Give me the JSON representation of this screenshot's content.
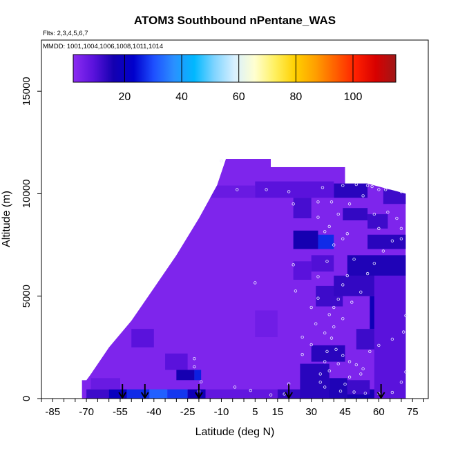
{
  "chart_data": {
    "type": "heatmap",
    "title": "ATOM3 Southbound nPentane_WAS",
    "flights_label": "Flts: 2,3,4,5,6,7",
    "dates_label": "MMDD: 1001,1004,1006,1008,1011,1014",
    "xlabel": "Latitude (deg N)",
    "ylabel": "Altitude (m)",
    "xlim": [
      -90,
      82
    ],
    "ylim": [
      0,
      17500
    ],
    "x_tick_labels": [
      "-85",
      "-70",
      "-55",
      "-40",
      "-25",
      "-10",
      "5",
      "15",
      "30",
      "45",
      "60",
      "75"
    ],
    "x_tick_values": [
      -85,
      -70,
      -55,
      -40,
      -25,
      -10,
      5,
      15,
      30,
      45,
      60,
      75
    ],
    "x_minor_step": 5,
    "y_tick_labels": [
      "0",
      "5000",
      "10000",
      "15000"
    ],
    "y_tick_values": [
      0,
      5000,
      10000,
      15000
    ],
    "colorbar": {
      "min": 2,
      "max": 115,
      "tick_labels": [
        "20",
        "40",
        "60",
        "80",
        "100"
      ],
      "tick_values": [
        20,
        40,
        60,
        80,
        100
      ],
      "colors": [
        "#8c2cf2",
        "#5a12dc",
        "#1400b0",
        "#0000cc",
        "#1e50ff",
        "#2a90ff",
        "#00b8ff",
        "#7fd4ff",
        "#d8f0ff",
        "#ffffd0",
        "#fff060",
        "#ffd000",
        "#ffa000",
        "#ff6000",
        "#ff2000",
        "#d80000",
        "#a01818"
      ]
    },
    "envelope": [
      [
        -72,
        0
      ],
      [
        -72,
        900
      ],
      [
        -70,
        900
      ],
      [
        -68,
        1200
      ],
      [
        -60,
        2500
      ],
      [
        -50,
        3800
      ],
      [
        -40,
        5400
      ],
      [
        -30,
        7000
      ],
      [
        -20,
        8800
      ],
      [
        -12,
        10400
      ],
      [
        -8,
        11700
      ],
      [
        12,
        11700
      ],
      [
        12,
        11300
      ],
      [
        45,
        11300
      ],
      [
        45,
        10500
      ],
      [
        55,
        10500
      ],
      [
        72,
        10000
      ],
      [
        72,
        0
      ]
    ],
    "background_value": 4,
    "patches": [
      {
        "x": [
          -70,
          -60
        ],
        "y": [
          0,
          450
        ],
        "value": 12
      },
      {
        "x": [
          -60,
          -52
        ],
        "y": [
          0,
          450
        ],
        "value": 20
      },
      {
        "x": [
          -52,
          -42
        ],
        "y": [
          0,
          450
        ],
        "value": 27
      },
      {
        "x": [
          -42,
          -34
        ],
        "y": [
          0,
          450
        ],
        "value": 32
      },
      {
        "x": [
          -34,
          -25
        ],
        "y": [
          0,
          450
        ],
        "value": 28
      },
      {
        "x": [
          -25,
          -17
        ],
        "y": [
          0,
          450
        ],
        "value": 18
      },
      {
        "x": [
          -17,
          15
        ],
        "y": [
          0,
          450
        ],
        "value": 8
      },
      {
        "x": [
          15,
          25
        ],
        "y": [
          0,
          450
        ],
        "value": 13
      },
      {
        "x": [
          25,
          60
        ],
        "y": [
          0,
          450
        ],
        "value": 16
      },
      {
        "x": [
          60,
          64
        ],
        "y": [
          0,
          450
        ],
        "value": 19
      },
      {
        "x": [
          64,
          72
        ],
        "y": [
          0,
          450
        ],
        "value": 34
      },
      {
        "x": [
          -68,
          -55
        ],
        "y": [
          450,
          1000
        ],
        "value": 7
      },
      {
        "x": [
          -30,
          -22
        ],
        "y": [
          900,
          1400
        ],
        "value": 16
      },
      {
        "x": [
          -22,
          -19
        ],
        "y": [
          900,
          1400
        ],
        "value": 26
      },
      {
        "x": [
          -35,
          -25
        ],
        "y": [
          1400,
          2200
        ],
        "value": 9
      },
      {
        "x": [
          -50,
          -40
        ],
        "y": [
          2500,
          3400
        ],
        "value": 9
      },
      {
        "x": [
          5,
          15
        ],
        "y": [
          3000,
          4300
        ],
        "value": 6
      },
      {
        "x": [
          25,
          38
        ],
        "y": [
          0,
          1700
        ],
        "value": 14
      },
      {
        "x": [
          38,
          46
        ],
        "y": [
          0,
          1000
        ],
        "value": 15
      },
      {
        "x": [
          46,
          56
        ],
        "y": [
          200,
          900
        ],
        "value": 12
      },
      {
        "x": [
          30,
          45
        ],
        "y": [
          1800,
          2600
        ],
        "value": 14
      },
      {
        "x": [
          50,
          70
        ],
        "y": [
          2400,
          3400
        ],
        "value": 12
      },
      {
        "x": [
          56,
          64
        ],
        "y": [
          3400,
          5000
        ],
        "value": 18
      },
      {
        "x": [
          32,
          44
        ],
        "y": [
          4500,
          5500
        ],
        "value": 12
      },
      {
        "x": [
          40,
          70
        ],
        "y": [
          5000,
          6000
        ],
        "value": 13
      },
      {
        "x": [
          46,
          72
        ],
        "y": [
          6000,
          7000
        ],
        "value": 15
      },
      {
        "x": [
          30,
          40
        ],
        "y": [
          6200,
          7000
        ],
        "value": 10
      },
      {
        "x": [
          22,
          33
        ],
        "y": [
          7300,
          8200
        ],
        "value": 16
      },
      {
        "x": [
          33,
          40
        ],
        "y": [
          7300,
          8000
        ],
        "value": 27
      },
      {
        "x": [
          22,
          30
        ],
        "y": [
          5800,
          6700
        ],
        "value": 9
      },
      {
        "x": [
          55,
          72
        ],
        "y": [
          7300,
          8000
        ],
        "value": 14
      },
      {
        "x": [
          22,
          30
        ],
        "y": [
          8800,
          9800
        ],
        "value": 11
      },
      {
        "x": [
          44,
          55
        ],
        "y": [
          8700,
          9300
        ],
        "value": 13
      },
      {
        "x": [
          55,
          64
        ],
        "y": [
          8300,
          9000
        ],
        "value": 12
      },
      {
        "x": [
          40,
          55
        ],
        "y": [
          9800,
          10500
        ],
        "value": 14
      },
      {
        "x": [
          62,
          72
        ],
        "y": [
          9500,
          10200
        ],
        "value": 12
      },
      {
        "x": [
          5,
          40
        ],
        "y": [
          9800,
          10600
        ],
        "value": 9
      },
      {
        "x": [
          -15,
          5
        ],
        "y": [
          9800,
          10400
        ],
        "value": 7
      },
      {
        "x": [
          58,
          72
        ],
        "y": [
          0,
          6000
        ],
        "value": 9
      }
    ],
    "sample_points": [
      [
        -22,
        1950
      ],
      [
        -22,
        1550
      ],
      [
        -19,
        820
      ],
      [
        -20,
        350
      ],
      [
        -4,
        560
      ],
      [
        3,
        400
      ],
      [
        5,
        5650
      ],
      [
        -3,
        10200
      ],
      [
        10,
        10200
      ],
      [
        -10,
        11600
      ],
      [
        12,
        180
      ],
      [
        18,
        220
      ],
      [
        20,
        720
      ],
      [
        26,
        2150
      ],
      [
        30,
        2630
      ],
      [
        26,
        3000
      ],
      [
        32,
        3650
      ],
      [
        30,
        4450
      ],
      [
        33,
        4900
      ],
      [
        23,
        5250
      ],
      [
        33,
        5950
      ],
      [
        37,
        6700
      ],
      [
        22,
        6530
      ],
      [
        36,
        8150
      ],
      [
        22,
        9500
      ],
      [
        20,
        10100
      ],
      [
        33,
        8850
      ],
      [
        39,
        9600
      ],
      [
        33,
        9600
      ],
      [
        44,
        10400
      ],
      [
        50,
        10450
      ],
      [
        55,
        10400
      ],
      [
        57,
        10350
      ],
      [
        60,
        10200
      ],
      [
        63,
        10200
      ],
      [
        70,
        10100
      ],
      [
        70,
        8300
      ],
      [
        70,
        7800
      ],
      [
        68,
        8800
      ],
      [
        64,
        9100
      ],
      [
        60,
        8300
      ],
      [
        46,
        8050
      ],
      [
        49,
        6800
      ],
      [
        46,
        6000
      ],
      [
        44,
        5550
      ],
      [
        42,
        4850
      ],
      [
        40,
        4450
      ],
      [
        38,
        4100
      ],
      [
        40,
        3500
      ],
      [
        39,
        2950
      ],
      [
        41,
        2400
      ],
      [
        44,
        2100
      ],
      [
        47,
        1800
      ],
      [
        50,
        1650
      ],
      [
        53,
        1450
      ],
      [
        34,
        1200
      ],
      [
        34,
        800
      ],
      [
        36,
        560
      ],
      [
        43,
        360
      ],
      [
        49,
        320
      ],
      [
        54,
        260
      ],
      [
        60,
        240
      ],
      [
        66,
        300
      ],
      [
        70,
        800
      ],
      [
        72,
        1300
      ],
      [
        72,
        4050
      ],
      [
        71,
        3250
      ],
      [
        66,
        2900
      ],
      [
        60,
        2600
      ],
      [
        56,
        2300
      ],
      [
        52,
        1200
      ],
      [
        47,
        1050
      ],
      [
        45,
        700
      ],
      [
        38,
        1350
      ],
      [
        42,
        1700
      ],
      [
        37,
        2300
      ],
      [
        36,
        3200
      ],
      [
        44,
        3900
      ],
      [
        48,
        4700
      ],
      [
        52,
        5200
      ],
      [
        55,
        6100
      ],
      [
        58,
        6600
      ],
      [
        62,
        7200
      ],
      [
        66,
        7700
      ],
      [
        40,
        7500
      ],
      [
        44,
        7800
      ],
      [
        38,
        8400
      ],
      [
        42,
        9000
      ],
      [
        47,
        9500
      ],
      [
        53,
        9900
      ],
      [
        35,
        10300
      ],
      [
        58,
        9000
      ],
      [
        36,
        1800
      ]
    ],
    "arrows_at_latitude": [
      -54,
      -44,
      -20,
      20,
      61
    ]
  }
}
